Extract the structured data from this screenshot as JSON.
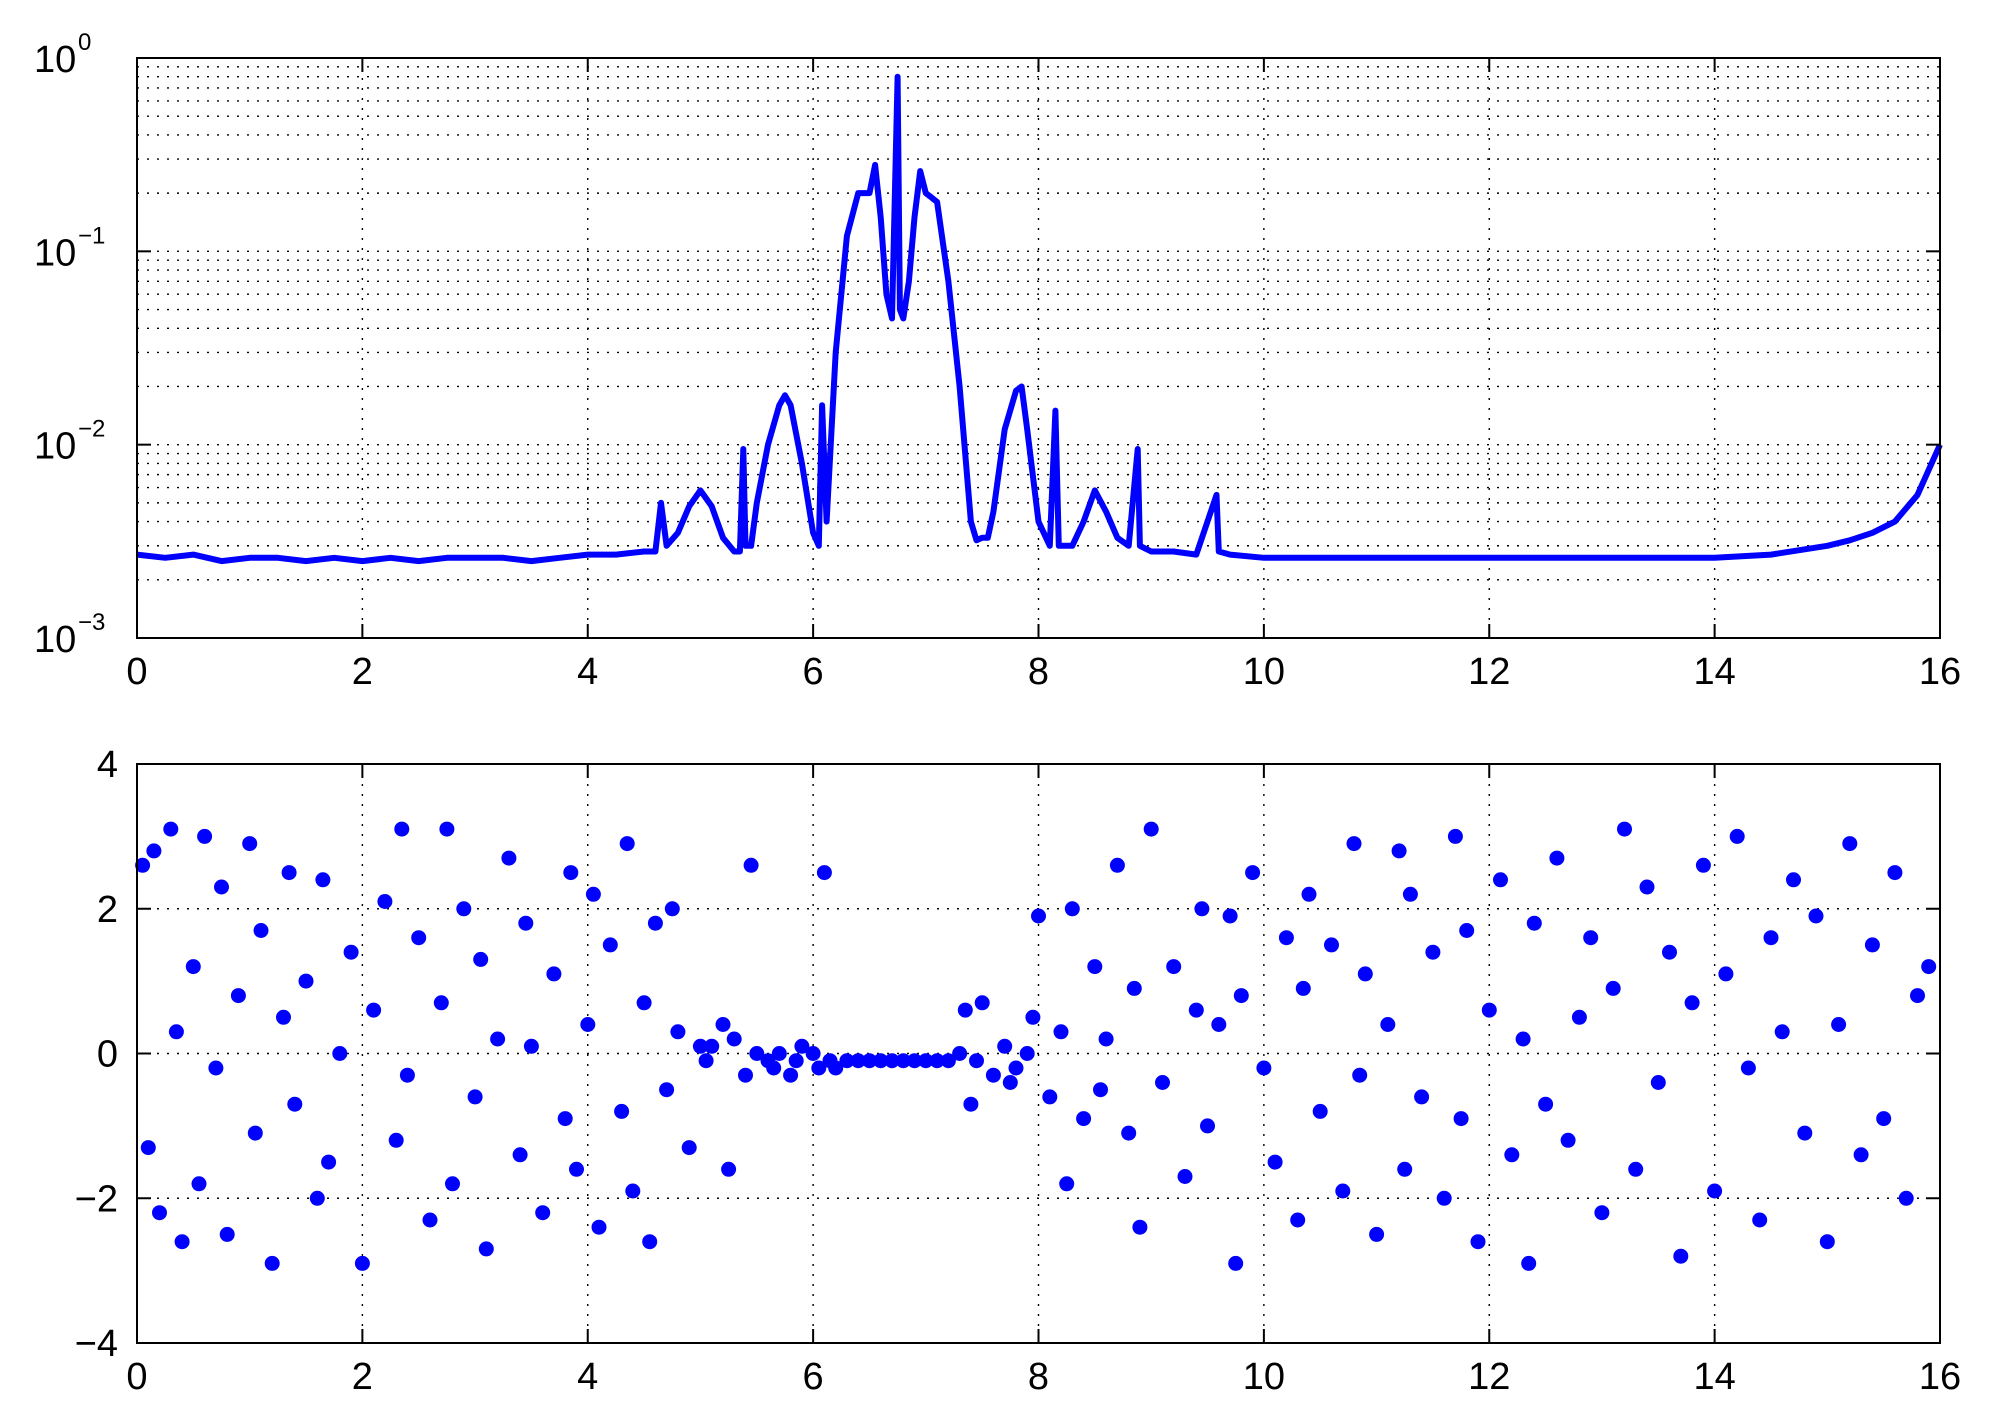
{
  "chart_data": [
    {
      "type": "line",
      "yscale": "log",
      "xlim": [
        0,
        16
      ],
      "ylim": [
        0.001,
        1
      ],
      "grid": true,
      "minor_grid": true,
      "line_color": "#0000ff",
      "xticks": [
        "0",
        "2",
        "4",
        "6",
        "8",
        "10",
        "12",
        "14",
        "16"
      ],
      "yticks": [
        {
          "base": "10",
          "exp": "−3"
        },
        {
          "base": "10",
          "exp": "−2"
        },
        {
          "base": "10",
          "exp": "−1"
        },
        {
          "base": "10",
          "exp": "0"
        }
      ],
      "series": [
        {
          "x": [
            0,
            0.25,
            0.5,
            0.75,
            1,
            1.25,
            1.5,
            1.75,
            2,
            2.25,
            2.5,
            2.75,
            3,
            3.25,
            3.5,
            3.75,
            4,
            4.25,
            4.5,
            4.6,
            4.65,
            4.7,
            4.8,
            4.9,
            5.0,
            5.1,
            5.2,
            5.3,
            5.35,
            5.38,
            5.4,
            5.45,
            5.5,
            5.6,
            5.7,
            5.75,
            5.8,
            5.9,
            6.0,
            6.05,
            6.08,
            6.12,
            6.2,
            6.3,
            6.4,
            6.5,
            6.55,
            6.6,
            6.65,
            6.7,
            6.75,
            6.77,
            6.8,
            6.85,
            6.9,
            6.95,
            7.0,
            7.05,
            7.1,
            7.2,
            7.3,
            7.4,
            7.45,
            7.5,
            7.55,
            7.6,
            7.7,
            7.8,
            7.85,
            7.9,
            8.0,
            8.1,
            8.15,
            8.18,
            8.2,
            8.3,
            8.4,
            8.5,
            8.6,
            8.7,
            8.8,
            8.88,
            8.9,
            9.0,
            9.2,
            9.4,
            9.58,
            9.6,
            9.7,
            10,
            10.5,
            11,
            11.5,
            12,
            12.5,
            13,
            13.5,
            14,
            14.5,
            15,
            15.2,
            15.4,
            15.6,
            15.8,
            16
          ],
          "y": [
            0.0027,
            0.0026,
            0.0027,
            0.0025,
            0.0026,
            0.0026,
            0.0025,
            0.0026,
            0.0025,
            0.0026,
            0.0025,
            0.0026,
            0.0026,
            0.0026,
            0.0025,
            0.0026,
            0.0027,
            0.0027,
            0.0028,
            0.0028,
            0.005,
            0.003,
            0.0035,
            0.0048,
            0.0058,
            0.0048,
            0.0033,
            0.0028,
            0.0028,
            0.0095,
            0.003,
            0.003,
            0.005,
            0.01,
            0.016,
            0.018,
            0.016,
            0.008,
            0.0035,
            0.003,
            0.016,
            0.004,
            0.03,
            0.12,
            0.2,
            0.2,
            0.28,
            0.15,
            0.06,
            0.045,
            0.8,
            0.05,
            0.045,
            0.07,
            0.15,
            0.26,
            0.2,
            0.19,
            0.18,
            0.07,
            0.02,
            0.004,
            0.0032,
            0.0033,
            0.0033,
            0.0045,
            0.012,
            0.019,
            0.02,
            0.012,
            0.004,
            0.003,
            0.015,
            0.003,
            0.003,
            0.003,
            0.004,
            0.0058,
            0.0045,
            0.0033,
            0.003,
            0.0095,
            0.003,
            0.0028,
            0.0028,
            0.0027,
            0.0055,
            0.0028,
            0.0027,
            0.0026,
            0.0026,
            0.0026,
            0.0026,
            0.0026,
            0.0026,
            0.0026,
            0.0026,
            0.0026,
            0.0027,
            0.003,
            0.0032,
            0.0035,
            0.004,
            0.0055,
            0.01
          ]
        }
      ]
    },
    {
      "type": "scatter",
      "xlim": [
        0,
        16
      ],
      "ylim": [
        -4,
        4
      ],
      "grid": true,
      "marker_color": "#0000ff",
      "xticks": [
        "0",
        "2",
        "4",
        "6",
        "8",
        "10",
        "12",
        "14",
        "16"
      ],
      "yticks": [
        "−4",
        "−2",
        "0",
        "2",
        "4"
      ],
      "series": [
        {
          "x": [
            0.05,
            0.1,
            0.15,
            0.2,
            0.3,
            0.35,
            0.4,
            0.5,
            0.55,
            0.6,
            0.7,
            0.75,
            0.8,
            0.9,
            1.0,
            1.05,
            1.1,
            1.2,
            1.3,
            1.35,
            1.4,
            1.5,
            1.6,
            1.65,
            1.7,
            1.8,
            1.9,
            2.0,
            2.1,
            2.2,
            2.3,
            2.35,
            2.4,
            2.5,
            2.6,
            2.7,
            2.75,
            2.8,
            2.9,
            3.0,
            3.05,
            3.1,
            3.2,
            3.3,
            3.4,
            3.45,
            3.5,
            3.6,
            3.7,
            3.8,
            3.85,
            3.9,
            4.0,
            4.05,
            4.1,
            4.2,
            4.3,
            4.35,
            4.4,
            4.5,
            4.55,
            4.6,
            4.7,
            4.75,
            4.8,
            4.9,
            5.0,
            5.05,
            5.1,
            5.2,
            5.25,
            5.3,
            5.4,
            5.45,
            5.5,
            5.6,
            5.65,
            5.7,
            5.8,
            5.85,
            5.9,
            6.0,
            6.05,
            6.1,
            6.15,
            6.2,
            6.3,
            6.4,
            6.5,
            6.6,
            6.7,
            6.8,
            6.9,
            7.0,
            7.1,
            7.2,
            7.3,
            7.35,
            7.4,
            7.45,
            7.5,
            7.6,
            7.7,
            7.75,
            7.8,
            7.9,
            7.95,
            8.0,
            8.1,
            8.2,
            8.25,
            8.3,
            8.4,
            8.5,
            8.55,
            8.6,
            8.7,
            8.8,
            8.85,
            8.9,
            9.0,
            9.1,
            9.2,
            9.3,
            9.4,
            9.45,
            9.5,
            9.6,
            9.7,
            9.75,
            9.8,
            9.9,
            10.0,
            10.1,
            10.2,
            10.3,
            10.35,
            10.4,
            10.5,
            10.6,
            10.7,
            10.8,
            10.85,
            10.9,
            11.0,
            11.1,
            11.2,
            11.25,
            11.3,
            11.4,
            11.5,
            11.6,
            11.7,
            11.75,
            11.8,
            11.9,
            12.0,
            12.1,
            12.2,
            12.3,
            12.35,
            12.4,
            12.5,
            12.6,
            12.7,
            12.8,
            12.9,
            13.0,
            13.1,
            13.2,
            13.3,
            13.4,
            13.5,
            13.6,
            13.7,
            13.8,
            13.9,
            14.0,
            14.1,
            14.2,
            14.3,
            14.4,
            14.5,
            14.6,
            14.7,
            14.8,
            14.9,
            15.0,
            15.1,
            15.2,
            15.3,
            15.4,
            15.5,
            15.6,
            15.7,
            15.8,
            15.9
          ],
          "y": [
            2.6,
            -1.3,
            2.8,
            -2.2,
            3.1,
            0.3,
            -2.6,
            1.2,
            -1.8,
            3.0,
            -0.2,
            2.3,
            -2.5,
            0.8,
            2.9,
            -1.1,
            1.7,
            -2.9,
            0.5,
            2.5,
            -0.7,
            1.0,
            -2.0,
            2.4,
            -1.5,
            0.0,
            1.4,
            -2.9,
            0.6,
            2.1,
            -1.2,
            3.1,
            -0.3,
            1.6,
            -2.3,
            0.7,
            3.1,
            -1.8,
            2.0,
            -0.6,
            1.3,
            -2.7,
            0.2,
            2.7,
            -1.4,
            1.8,
            0.1,
            -2.2,
            1.1,
            -0.9,
            2.5,
            -1.6,
            0.4,
            2.2,
            -2.4,
            1.5,
            -0.8,
            2.9,
            -1.9,
            0.7,
            -2.6,
            1.8,
            -0.5,
            2.0,
            0.3,
            -1.3,
            0.1,
            -0.1,
            0.1,
            0.4,
            -1.6,
            0.2,
            -0.3,
            2.6,
            0.0,
            -0.1,
            -0.2,
            0.0,
            -0.3,
            -0.1,
            0.1,
            0.0,
            -0.2,
            2.5,
            -0.1,
            -0.2,
            -0.1,
            -0.1,
            -0.1,
            -0.1,
            -0.1,
            -0.1,
            -0.1,
            -0.1,
            -0.1,
            -0.1,
            0.0,
            0.6,
            -0.7,
            -0.1,
            0.7,
            -0.3,
            0.1,
            -0.4,
            -0.2,
            0.0,
            0.5,
            1.9,
            -0.6,
            0.3,
            -1.8,
            2.0,
            -0.9,
            1.2,
            -0.5,
            0.2,
            2.6,
            -1.1,
            0.9,
            -2.4,
            3.1,
            -0.4,
            1.2,
            -1.7,
            0.6,
            2.0,
            -1.0,
            0.4,
            1.9,
            -2.9,
            0.8,
            2.5,
            -0.2,
            -1.5,
            1.6,
            -2.3,
            0.9,
            2.2,
            -0.8,
            1.5,
            -1.9,
            2.9,
            -0.3,
            1.1,
            -2.5,
            0.4,
            2.8,
            -1.6,
            2.2,
            -0.6,
            1.4,
            -2.0,
            3.0,
            -0.9,
            1.7,
            -2.6,
            0.6,
            2.4,
            -1.4,
            0.2,
            -2.9,
            1.8,
            -0.7,
            2.7,
            -1.2,
            0.5,
            1.6,
            -2.2,
            0.9,
            3.1,
            -1.6,
            2.3,
            -0.4,
            1.4,
            -2.8,
            0.7,
            2.6,
            -1.9,
            1.1,
            3.0,
            -0.2,
            -2.3,
            1.6,
            0.3,
            2.4,
            -1.1,
            1.9,
            -2.6,
            0.4,
            2.9,
            -1.4,
            1.5,
            -0.9,
            2.5,
            -2.0,
            0.8,
            1.2
          ]
        }
      ]
    }
  ]
}
